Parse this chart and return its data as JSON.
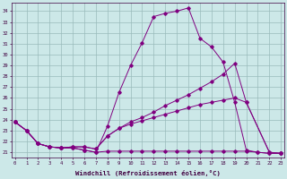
{
  "xlabel": "Windchill (Refroidissement éolien,°C)",
  "bg_color": "#cce8e8",
  "line_color": "#800080",
  "grid_color": "#99bbbb",
  "ylim_min": 20.5,
  "ylim_max": 34.8,
  "xlim_min": -0.3,
  "xlim_max": 23.3,
  "yticks": [
    21,
    22,
    23,
    24,
    25,
    26,
    27,
    28,
    29,
    30,
    31,
    32,
    33,
    34
  ],
  "xticks": [
    0,
    1,
    2,
    3,
    4,
    5,
    6,
    7,
    8,
    9,
    10,
    11,
    12,
    13,
    14,
    15,
    16,
    17,
    18,
    19,
    20,
    21,
    22,
    23
  ],
  "line1_x": [
    0,
    1,
    2,
    3,
    4,
    5,
    6,
    7,
    8,
    9,
    10,
    11,
    12,
    13,
    14,
    15,
    16,
    17,
    18,
    19,
    20,
    21,
    22,
    23
  ],
  "line1_y": [
    23.8,
    23.0,
    21.8,
    21.5,
    21.4,
    21.4,
    21.2,
    21.0,
    21.1,
    21.1,
    21.1,
    21.1,
    21.1,
    21.1,
    21.1,
    21.1,
    21.1,
    21.1,
    21.1,
    21.1,
    21.1,
    21.0,
    20.9,
    20.9
  ],
  "line2_x": [
    0,
    1,
    2,
    3,
    4,
    5,
    6,
    7,
    8,
    9,
    10,
    11,
    12,
    13,
    14,
    15,
    16,
    17,
    18,
    19,
    20,
    21,
    22,
    23
  ],
  "line2_y": [
    23.8,
    23.0,
    21.8,
    21.5,
    21.4,
    21.4,
    21.2,
    21.0,
    23.4,
    26.5,
    29.0,
    31.1,
    33.5,
    33.8,
    34.0,
    34.3,
    31.5,
    30.7,
    29.3,
    25.6,
    21.2,
    21.0,
    20.9,
    20.9
  ],
  "line3_x": [
    0,
    1,
    2,
    3,
    4,
    5,
    6,
    7,
    8,
    9,
    10,
    11,
    12,
    13,
    14,
    15,
    16,
    17,
    18,
    19,
    20,
    22,
    23
  ],
  "line3_y": [
    23.8,
    23.0,
    21.8,
    21.5,
    21.4,
    21.5,
    21.5,
    21.3,
    22.5,
    23.2,
    23.8,
    24.2,
    24.7,
    25.3,
    25.8,
    26.3,
    26.9,
    27.5,
    28.2,
    29.2,
    25.6,
    21.0,
    20.9
  ],
  "line4_x": [
    0,
    1,
    2,
    3,
    4,
    5,
    6,
    7,
    8,
    9,
    10,
    11,
    12,
    13,
    14,
    15,
    16,
    17,
    18,
    19,
    20,
    22,
    23
  ],
  "line4_y": [
    23.8,
    23.0,
    21.8,
    21.5,
    21.4,
    21.5,
    21.5,
    21.3,
    22.5,
    23.2,
    23.6,
    23.9,
    24.2,
    24.5,
    24.8,
    25.1,
    25.4,
    25.6,
    25.8,
    26.0,
    25.6,
    21.0,
    20.9
  ]
}
